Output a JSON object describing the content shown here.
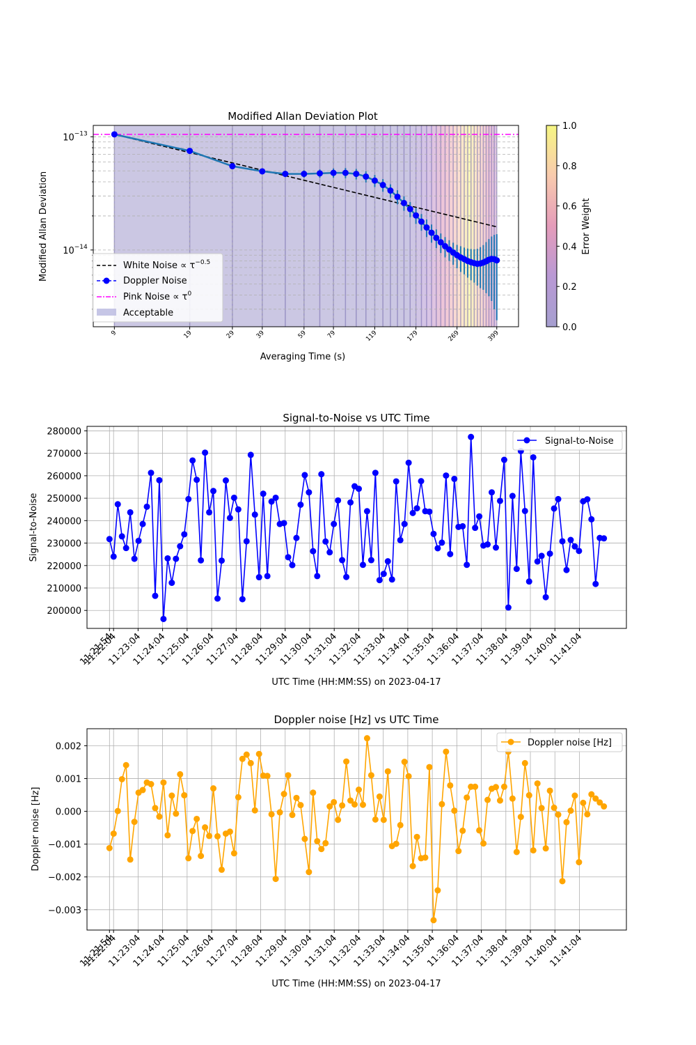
{
  "chart_data": [
    {
      "type": "line",
      "title": "Modified Allan Deviation Plot",
      "xlabel": "Averaging Time (s)",
      "ylabel": "Modified Allan Deviation",
      "x_scale": "log",
      "y_scale": "log",
      "xlim": [
        7.3,
        495
      ],
      "ylim": [
        2.1e-15,
        1.26e-13
      ],
      "xticks": [
        9,
        19,
        29,
        39,
        59,
        79,
        119,
        179,
        269,
        399
      ],
      "yticks": [
        {
          "value": 1e-13,
          "label": "10",
          "exp": "−13"
        },
        {
          "value": 1e-14,
          "label": "10",
          "exp": "−14"
        }
      ],
      "grid": true,
      "legend_position": "lower left",
      "legend": [
        {
          "label": "White Noise ∝ τ",
          "exp": "−0.5",
          "style": "dashed",
          "color": "#000000"
        },
        {
          "label": "Doppler Noise",
          "exp": "",
          "style": "dashed-marker",
          "color": "#0000ff"
        },
        {
          "label": "Pink Noise ∝ τ",
          "exp": "0",
          "style": "dashdot",
          "color": "#ff00ff"
        },
        {
          "label": "Acceptable",
          "exp": "",
          "style": "patch",
          "color": "#b8b8e0"
        }
      ],
      "colorbar": {
        "label": "Error Weight",
        "ticks": [
          "0.0",
          "0.2",
          "0.4",
          "0.6",
          "0.8",
          "1.0"
        ]
      },
      "series": [
        {
          "name": "Doppler Noise",
          "x": [
            9,
            19,
            29,
            39,
            49,
            59,
            69,
            79,
            89,
            99,
            109,
            119,
            129,
            139,
            149,
            159,
            169,
            179,
            189,
            199,
            209,
            219,
            229,
            239,
            249,
            259,
            269,
            279,
            289,
            299,
            309,
            319,
            329,
            339,
            349,
            359,
            369,
            379,
            389,
            399
          ],
          "values": [
            1.05e-13,
            7.5e-14,
            5.5e-14,
            4.95e-14,
            4.7e-14,
            4.7e-14,
            4.75e-14,
            4.8e-14,
            4.8e-14,
            4.7e-14,
            4.45e-14,
            4.1e-14,
            3.75e-14,
            3.35e-14,
            2.95e-14,
            2.6e-14,
            2.3e-14,
            2.02e-14,
            1.78e-14,
            1.58e-14,
            1.42e-14,
            1.28e-14,
            1.17e-14,
            1.08e-14,
            1.01e-14,
            9.5e-15,
            9e-15,
            8.6e-15,
            8.3e-15,
            8e-15,
            7.8e-15,
            7.65e-15,
            7.55e-15,
            7.6e-15,
            7.75e-15,
            7.95e-15,
            8.2e-15,
            8.35e-15,
            8.3e-15,
            8.1e-15
          ],
          "errors": [
            1e-15,
            1.5e-15,
            2e-15,
            2.5e-15,
            3e-15,
            3.5e-15,
            4e-15,
            4.5e-15,
            5e-15,
            5e-15,
            5e-15,
            5e-15,
            4.8e-15,
            4.5e-15,
            4.2e-15,
            3.8e-15,
            3.5e-15,
            3.2e-15,
            3e-15,
            2.8e-15,
            2.6e-15,
            2.4e-15,
            2.3e-15,
            2.2e-15,
            2.1e-15,
            2.1e-15,
            2.1e-15,
            2.2e-15,
            2.2e-15,
            2.3e-15,
            2.4e-15,
            2.5e-15,
            2.7e-15,
            3e-15,
            3.3e-15,
            3.8e-15,
            4.3e-15,
            4.8e-15,
            5.3e-15,
            5.7e-15
          ]
        },
        {
          "name": "White Noise",
          "x": [
            9,
            399
          ],
          "values": [
            1.05e-13,
            1.6e-14
          ]
        },
        {
          "name": "Pink Noise",
          "x": [
            7.3,
            495
          ],
          "values": [
            1.05e-13,
            1.05e-13
          ]
        }
      ]
    },
    {
      "type": "line",
      "title": "Signal-to-Noise vs UTC Time",
      "xlabel": "UTC Time (HH:MM:SS) on 2023-04-17",
      "ylabel": "Signal-to-Noise",
      "ylim": [
        192000,
        282000
      ],
      "yticks": [
        200000,
        210000,
        220000,
        230000,
        240000,
        250000,
        260000,
        270000,
        280000
      ],
      "xlim": [
        -55,
        1265
      ],
      "x_unit": "seconds after 11:21:54",
      "xticks": [
        {
          "t": 0,
          "label": "11:21:54"
        },
        {
          "t": 10,
          "label": "11:22:04"
        },
        {
          "t": 70,
          "label": "11:23:04"
        },
        {
          "t": 130,
          "label": "11:24:04"
        },
        {
          "t": 190,
          "label": "11:25:04"
        },
        {
          "t": 250,
          "label": "11:26:04"
        },
        {
          "t": 310,
          "label": "11:27:04"
        },
        {
          "t": 370,
          "label": "11:28:04"
        },
        {
          "t": 430,
          "label": "11:29:04"
        },
        {
          "t": 490,
          "label": "11:30:04"
        },
        {
          "t": 550,
          "label": "11:31:04"
        },
        {
          "t": 610,
          "label": "11:32:04"
        },
        {
          "t": 670,
          "label": "11:33:04"
        },
        {
          "t": 730,
          "label": "11:34:04"
        },
        {
          "t": 790,
          "label": "11:35:04"
        },
        {
          "t": 850,
          "label": "11:36:04"
        },
        {
          "t": 910,
          "label": "11:37:04"
        },
        {
          "t": 970,
          "label": "11:38:04"
        },
        {
          "t": 1030,
          "label": "11:39:04"
        },
        {
          "t": 1090,
          "label": "11:40:04"
        },
        {
          "t": 1150,
          "label": "11:41:04"
        }
      ],
      "grid": true,
      "legend_position": "upper right",
      "color": "#0000ff",
      "series": [
        {
          "name": "Signal-to-Noise",
          "values": [
            231800,
            224000,
            247300,
            233000,
            227800,
            243700,
            223000,
            231000,
            238500,
            246200,
            261300,
            206500,
            258000,
            196200,
            223200,
            212300,
            223000,
            228600,
            233900,
            249600,
            266800,
            258200,
            222300,
            270300,
            243700,
            253200,
            205300,
            222200,
            257900,
            241200,
            250200,
            245000,
            205000,
            230800,
            269300,
            242700,
            214800,
            252000,
            215300,
            248500,
            250200,
            238500,
            238900,
            223700,
            220200,
            232300,
            247100,
            260300,
            252600,
            226400,
            215300,
            260700,
            230700,
            225900,
            238500,
            249000,
            222400,
            214900,
            248100,
            255300,
            254200,
            220300,
            244200,
            222400,
            261300,
            213500,
            216300,
            221900,
            213800,
            257500,
            231300,
            238500,
            265800,
            243400,
            245500,
            257600,
            244200,
            244000,
            234100,
            227700,
            230200,
            260100,
            225100,
            258600,
            237200,
            237500,
            220300,
            277300,
            236800,
            241900,
            228900,
            229400,
            252600,
            228000,
            248800,
            267100,
            201300,
            251000,
            218500,
            271000,
            244300,
            212900,
            268200,
            221800,
            224300,
            205900,
            225300,
            245400,
            249600,
            230800,
            218000,
            231400,
            228500,
            226500,
            248600,
            249500,
            240600,
            211800,
            232300,
            232100
          ]
        }
      ]
    },
    {
      "type": "line",
      "title": "Doppler noise [Hz] vs UTC Time",
      "xlabel": "UTC Time (HH:MM:SS) on 2023-04-17",
      "ylabel": "Doppler noise [Hz]",
      "ylim": [
        -0.00362,
        0.00252
      ],
      "yticks": [
        {
          "value": -0.003,
          "label": "−0.003"
        },
        {
          "value": -0.002,
          "label": "−0.002"
        },
        {
          "value": -0.001,
          "label": "−0.001"
        },
        {
          "value": 0,
          "label": "0.000"
        },
        {
          "value": 0.001,
          "label": "0.001"
        },
        {
          "value": 0.002,
          "label": "0.002"
        }
      ],
      "xlim": [
        -55,
        1265
      ],
      "x_unit": "seconds after 11:21:54",
      "xticks": [
        {
          "t": 0,
          "label": "11:21:54"
        },
        {
          "t": 10,
          "label": "11:22:04"
        },
        {
          "t": 70,
          "label": "11:23:04"
        },
        {
          "t": 130,
          "label": "11:24:04"
        },
        {
          "t": 190,
          "label": "11:25:04"
        },
        {
          "t": 250,
          "label": "11:26:04"
        },
        {
          "t": 310,
          "label": "11:27:04"
        },
        {
          "t": 370,
          "label": "11:28:04"
        },
        {
          "t": 430,
          "label": "11:29:04"
        },
        {
          "t": 490,
          "label": "11:30:04"
        },
        {
          "t": 550,
          "label": "11:31:04"
        },
        {
          "t": 610,
          "label": "11:32:04"
        },
        {
          "t": 670,
          "label": "11:33:04"
        },
        {
          "t": 730,
          "label": "11:34:04"
        },
        {
          "t": 790,
          "label": "11:35:04"
        },
        {
          "t": 850,
          "label": "11:36:04"
        },
        {
          "t": 910,
          "label": "11:37:04"
        },
        {
          "t": 970,
          "label": "11:38:04"
        },
        {
          "t": 1030,
          "label": "11:39:04"
        },
        {
          "t": 1090,
          "label": "11:40:04"
        },
        {
          "t": 1150,
          "label": "11:41:04"
        }
      ],
      "grid": true,
      "legend_position": "upper right",
      "color": "#ffa500",
      "series": [
        {
          "name": "Doppler noise [Hz]",
          "values": [
            -0.00112,
            -0.00068,
            1e-05,
            0.00098,
            0.00141,
            -0.00147,
            -0.00032,
            0.00057,
            0.00065,
            0.00088,
            0.00083,
            0.0001,
            -0.00016,
            0.00088,
            -0.00073,
            0.00048,
            -7e-05,
            0.00113,
            0.00049,
            -0.00143,
            -0.0006,
            -0.00023,
            -0.00136,
            -0.00049,
            -0.00075,
            0.0007,
            -0.00076,
            -0.00178,
            -0.00068,
            -0.00062,
            -0.00128,
            0.00043,
            0.0016,
            0.00173,
            0.00147,
            3e-05,
            0.00175,
            0.00109,
            0.00108,
            -9e-05,
            -0.00206,
            -3e-05,
            0.00053,
            0.0011,
            -0.00011,
            0.00041,
            0.00019,
            -0.00084,
            -0.00185,
            0.00057,
            -0.00091,
            -0.00115,
            -0.00097,
            0.00015,
            0.00028,
            -0.00026,
            0.00018,
            0.00152,
            0.00033,
            0.00021,
            0.00066,
            0.0002,
            0.00223,
            0.0011,
            -0.00025,
            0.00045,
            -0.00026,
            0.00122,
            -0.00106,
            -0.00099,
            -0.00042,
            0.00151,
            0.00107,
            -0.00167,
            -0.00078,
            -0.00143,
            -0.00141,
            0.00135,
            -0.00332,
            -0.00241,
            0.00022,
            0.00182,
            0.00079,
            2e-05,
            -0.00121,
            -0.00059,
            0.00042,
            0.00075,
            0.00075,
            -0.00058,
            -0.00098,
            0.00035,
            0.00069,
            0.00074,
            0.00033,
            0.00075,
            0.00182,
            0.00039,
            -0.00124,
            -0.00017,
            0.00147,
            0.00049,
            -0.00119,
            0.00085,
            0.0001,
            -0.00113,
            0.00063,
            0.00011,
            -0.0001,
            -0.00213,
            -0.00033,
            2e-05,
            0.00048,
            -0.00155,
            0.00026,
            -9e-05,
            0.00052,
            0.00039,
            0.00027,
            0.00015
          ]
        }
      ]
    }
  ]
}
